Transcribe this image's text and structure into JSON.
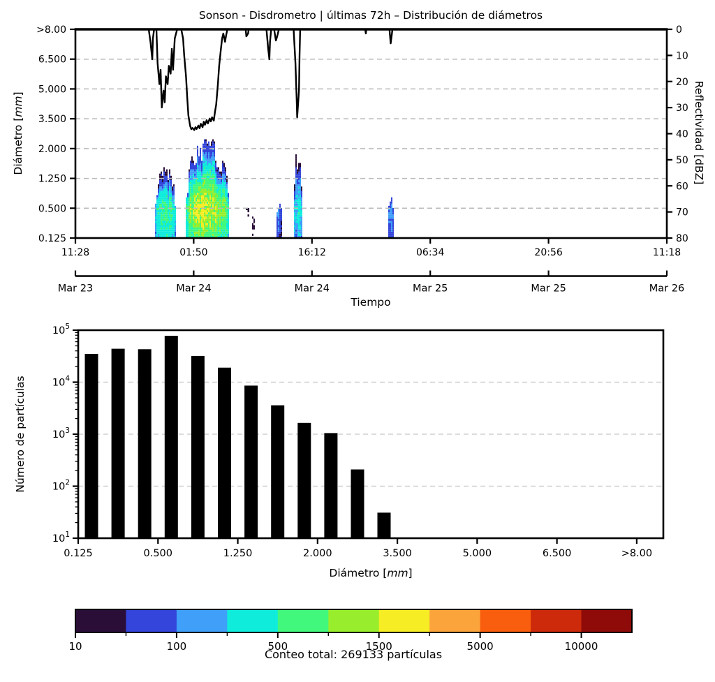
{
  "labels": {
    "diametro_pre": "Diámetro [",
    "diametro_it": "mm",
    "diametro_post": "]",
    "reflectividad": "Reflectividad [dBZ]",
    "tiempo": "Tiempo",
    "numero_particulas": "Número de partículas"
  },
  "chart_data": [
    {
      "type": "heatmap",
      "title": "Sonson - Disdrometro | últimas 72h – Distribución de diámetros",
      "xlabel": "Tiempo",
      "ylabel": "Diámetro [mm]",
      "y2label": "Reflectividad [dBZ]",
      "x_time_ticks": [
        "11:28",
        "01:50",
        "16:12",
        "06:34",
        "20:56",
        "11:18"
      ],
      "x_date_ticks": [
        "Mar 23",
        "Mar 24",
        "Mar 24",
        "Mar 25",
        "Mar 25",
        "Mar 26"
      ],
      "y_diameter_ticks": [
        ">8.00",
        "6.500",
        "5.000",
        "3.500",
        "2.000",
        "1.250",
        "0.500",
        "0.125"
      ],
      "y2_dbz_ticks": [
        "0",
        "10",
        "20",
        "30",
        "40",
        "50",
        "60",
        "70",
        "80"
      ],
      "y2_inverted": true,
      "grid": "horizontal-dashed",
      "events": [
        {
          "t0": 0.1275,
          "t1": 0.1311,
          "bot": 0.95,
          "top": 1.3,
          "peak": 15
        },
        {
          "t0": 0.1346,
          "t1": 0.17,
          "bot": 0,
          "top": 2.4,
          "peak": 800
        },
        {
          "t0": 0.1865,
          "t1": 0.2586,
          "bot": 0,
          "top": 3.1,
          "peak": 2000
        },
        {
          "t0": 0.2881,
          "t1": 0.294,
          "bot": 0,
          "top": 1.2,
          "peak": 18
        },
        {
          "t0": 0.2963,
          "t1": 0.3046,
          "bot": 0,
          "top": 0.8,
          "peak": 15
        },
        {
          "t0": 0.3329,
          "t1": 0.3353,
          "bot": 0,
          "top": 0.8,
          "peak": 12
        },
        {
          "t0": 0.34,
          "t1": 0.3506,
          "bot": 0,
          "top": 1.1,
          "peak": 150
        },
        {
          "t0": 0.3695,
          "t1": 0.3825,
          "bot": 0,
          "top": 3.0,
          "peak": 420
        },
        {
          "t0": 0.5289,
          "t1": 0.5384,
          "bot": 0,
          "top": 1.3,
          "peak": 170
        },
        {
          "t0": 0.5431,
          "t1": 0.5466,
          "bot": 0,
          "top": 0.5,
          "peak": 12
        }
      ],
      "reflectivity_dbz_segments": [
        [
          [
            0.124,
            0
          ],
          [
            0.127,
            5
          ],
          [
            0.13,
            11.5
          ],
          [
            0.131,
            3.5
          ],
          [
            0.133,
            0
          ],
          [
            0.137,
            0
          ],
          [
            0.139,
            13
          ],
          [
            0.142,
            21
          ],
          [
            0.144,
            15.5
          ],
          [
            0.146,
            30
          ],
          [
            0.149,
            23.5
          ],
          [
            0.151,
            28
          ],
          [
            0.153,
            18
          ],
          [
            0.156,
            21
          ],
          [
            0.158,
            14
          ],
          [
            0.161,
            17
          ],
          [
            0.163,
            7.5
          ],
          [
            0.165,
            15.5
          ],
          [
            0.168,
            3.5
          ],
          [
            0.172,
            0
          ],
          [
            0.179,
            0
          ],
          [
            0.182,
            3.5
          ],
          [
            0.184,
            10
          ],
          [
            0.187,
            18
          ],
          [
            0.189,
            26
          ],
          [
            0.191,
            33
          ],
          [
            0.194,
            37
          ],
          [
            0.196,
            38.3
          ],
          [
            0.198,
            37.8
          ],
          [
            0.201,
            38.6
          ],
          [
            0.203,
            37.5
          ],
          [
            0.205,
            38.2
          ],
          [
            0.208,
            36.9
          ],
          [
            0.21,
            37.9
          ],
          [
            0.212,
            36.2
          ],
          [
            0.215,
            37.5
          ],
          [
            0.217,
            35.4
          ],
          [
            0.219,
            36.6
          ],
          [
            0.222,
            34.8
          ],
          [
            0.224,
            36.1
          ],
          [
            0.227,
            34.2
          ],
          [
            0.229,
            35.3
          ],
          [
            0.231,
            33.7
          ],
          [
            0.234,
            35.0
          ],
          [
            0.236,
            31.6
          ],
          [
            0.238,
            28.9
          ],
          [
            0.241,
            20.9
          ],
          [
            0.243,
            14.2
          ],
          [
            0.246,
            7.5
          ],
          [
            0.248,
            3.5
          ],
          [
            0.25,
            1.6
          ],
          [
            0.253,
            4.8
          ],
          [
            0.255,
            2.1
          ],
          [
            0.257,
            0
          ]
        ],
        [
          [
            0.288,
            0
          ],
          [
            0.289,
            2.7
          ],
          [
            0.292,
            1.6
          ],
          [
            0.293,
            0
          ]
        ],
        [
          [
            0.323,
            0
          ],
          [
            0.326,
            7.5
          ],
          [
            0.328,
            11.5
          ],
          [
            0.329,
            4.8
          ],
          [
            0.331,
            0
          ]
        ],
        [
          [
            0.336,
            0
          ],
          [
            0.339,
            4.3
          ],
          [
            0.341,
            2.9
          ],
          [
            0.344,
            0
          ]
        ],
        [
          [
            0.369,
            0
          ],
          [
            0.372,
            12.8
          ],
          [
            0.374,
            26.2
          ],
          [
            0.375,
            33.7
          ],
          [
            0.378,
            23.5
          ],
          [
            0.379,
            10.2
          ],
          [
            0.38,
            0
          ]
        ],
        [
          [
            0.49,
            0
          ],
          [
            0.491,
            1.6
          ],
          [
            0.492,
            0
          ]
        ],
        [
          [
            0.531,
            0
          ],
          [
            0.533,
            5.4
          ],
          [
            0.535,
            2.1
          ],
          [
            0.536,
            0
          ]
        ]
      ]
    },
    {
      "type": "bar",
      "ylabel": "Número de partículas",
      "xlabel": "Diámetro [mm]",
      "yscale": "log",
      "ylim": [
        10,
        100000
      ],
      "x_tick_labels": [
        "0.125",
        "0.500",
        "1.250",
        "2.000",
        "3.500",
        "5.000",
        "6.500",
        ">8.00"
      ],
      "n_classes": 22,
      "x_tick_class_positions": [
        0,
        3,
        6,
        9,
        12,
        15,
        18,
        21
      ],
      "values": [
        35000,
        44000,
        43000,
        78000,
        32000,
        19000,
        8600,
        3600,
        1650,
        1050,
        210,
        31
      ],
      "bar_color": "#000000",
      "grid": "horizontal-dashed"
    },
    {
      "type": "colorbar",
      "segment_colors": [
        "#2a0e38",
        "#3345da",
        "#3f9ff9",
        "#10ecdc",
        "#41f87d",
        "#98ee2c",
        "#f6ed24",
        "#fba43b",
        "#f85e0e",
        "#cd2a0b",
        "#8e0b09"
      ],
      "tick_labels": [
        "10",
        "100",
        "500",
        "1500",
        "5000",
        "10000"
      ],
      "tick_boundary_indices": [
        0,
        2,
        4,
        6,
        8,
        10
      ],
      "n_segments": 11,
      "caption": "Conteo total: 269133 partículas"
    }
  ]
}
